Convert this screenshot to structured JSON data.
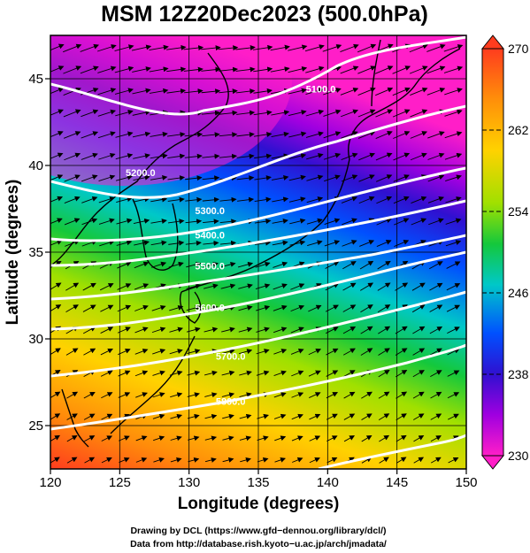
{
  "title": "MSM 12Z20Dec2023 (500.0hPa)",
  "map": {
    "xlabel": "Longitude (degrees)",
    "ylabel": "Latitude  (degrees)",
    "x_ticks": [
      "120",
      "125",
      "130",
      "135",
      "140",
      "145",
      "150"
    ],
    "y_ticks": [
      "25",
      "30",
      "35",
      "40",
      "45"
    ],
    "lon_range": [
      120,
      150
    ],
    "lat_range": [
      22.5,
      47.5
    ],
    "wind_direction": "westerly, increasing speed with latitude",
    "contour_color": "#ffffff",
    "coast_color": "#000000"
  },
  "colorbar": {
    "ticks": [
      "270",
      "262",
      "254",
      "246",
      "238",
      "230"
    ],
    "range": [
      230,
      270
    ],
    "colors": [
      "#ff3c1e",
      "#ff8c0a",
      "#ffd200",
      "#a0e000",
      "#14c83c",
      "#00c8c8",
      "#0050ff",
      "#3010d0",
      "#a000e0",
      "#ff1ec8"
    ]
  },
  "contours": [
    {
      "label": "5100.0",
      "lon": 139.5,
      "lat": 44.2
    },
    {
      "label": "5200.0",
      "lon": 126.5,
      "lat": 39.4
    },
    {
      "label": "5300.0",
      "lon": 131.5,
      "lat": 37.2
    },
    {
      "label": "5400.0",
      "lon": 131.5,
      "lat": 35.8
    },
    {
      "label": "5500.0",
      "lon": 131.5,
      "lat": 34.0
    },
    {
      "label": "5600.0",
      "lon": 131.5,
      "lat": 31.6
    },
    {
      "label": "5700.0",
      "lon": 133.0,
      "lat": 28.8
    },
    {
      "label": "5800.0",
      "lon": 133.0,
      "lat": 26.2
    }
  ],
  "credits": {
    "line1": "Drawing by DCL (https://www.gfd−dennou.org/library/dcl/)",
    "line2": "Data from http://database.rish.kyoto−u.ac.jp/arch/jmadata/"
  }
}
